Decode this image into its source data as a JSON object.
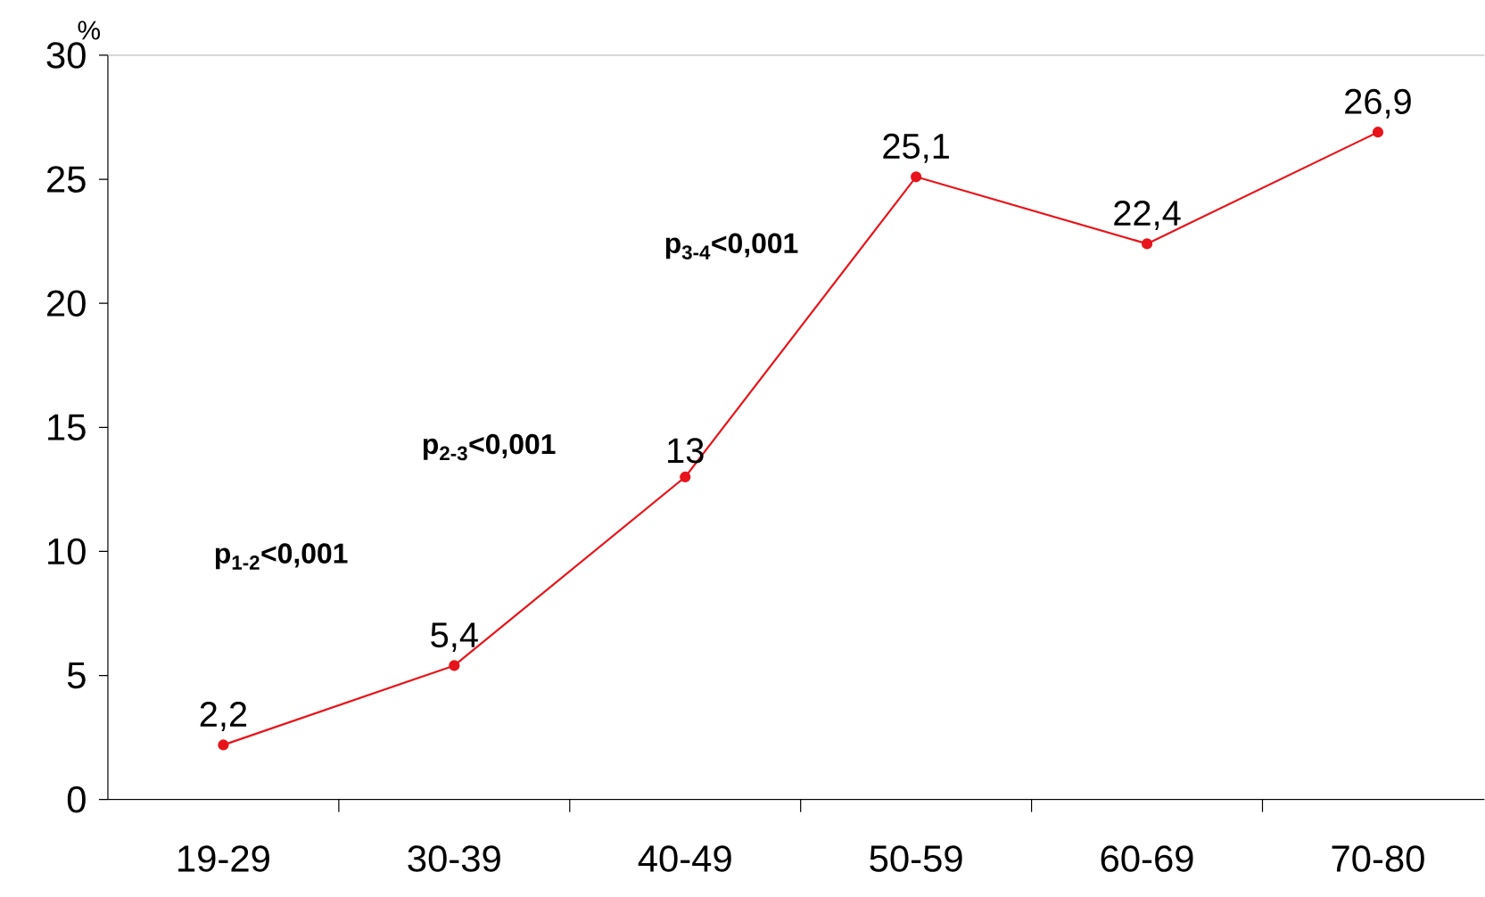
{
  "chart_data": {
    "type": "line",
    "ylabel": "%",
    "categories": [
      "19-29",
      "30-39",
      "40-49",
      "50-59",
      "60-69",
      "70-80"
    ],
    "series": [
      {
        "color": "#e8141b",
        "values": [
          2.2,
          5.4,
          13,
          25.1,
          22.4,
          26.9
        ],
        "value_labels": [
          "2,2",
          "5,4",
          "13",
          "25,1",
          "22,4",
          "26,9"
        ]
      }
    ],
    "ylim": [
      0,
      30
    ],
    "yticks": [
      0,
      5,
      10,
      15,
      20,
      25,
      30
    ],
    "marker": "circle",
    "line_style": "solid",
    "grid": false,
    "annotations": [
      "p$_{1-2}$<0,001",
      "p$_{2-3}$<0,001",
      "p$_{3-4}$<0,001"
    ]
  }
}
